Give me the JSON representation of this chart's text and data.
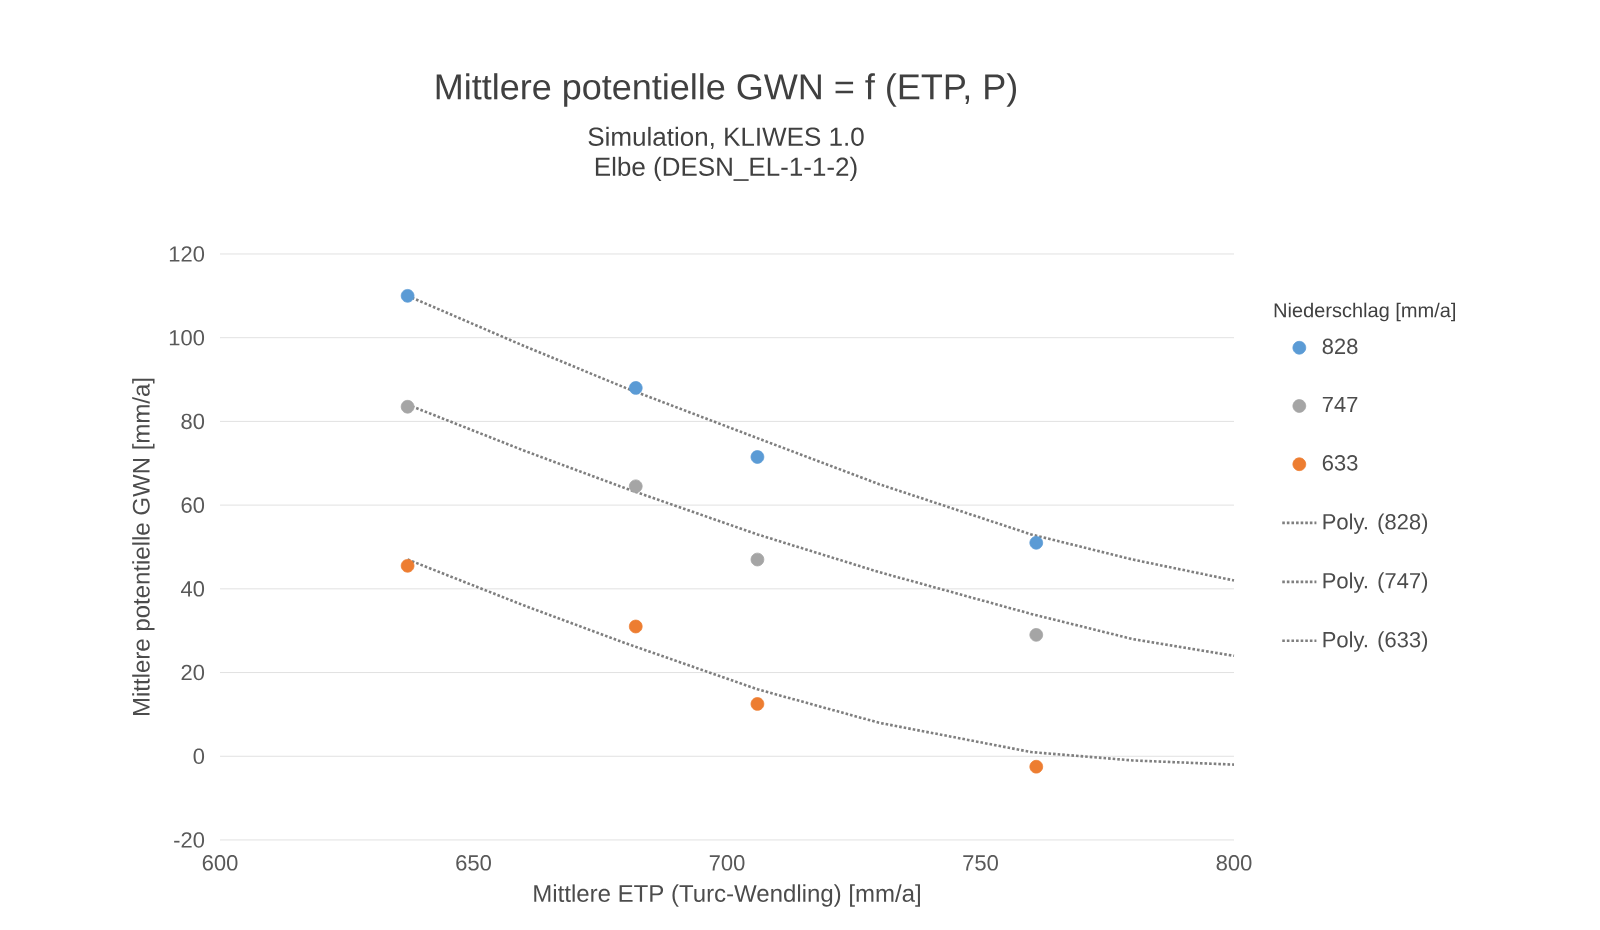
{
  "chart_data": {
    "type": "scatter",
    "title": "Mittlere potentielle GWN = f (ETP, P)",
    "subtitle": "Simulation, KLIWES 1.0\nElbe (DESN_EL-1-1-2)",
    "xlabel": "Mittlere ETP (Turc-Wendling) [mm/a]",
    "ylabel": "Mittlere potentielle GWN [mm/a]",
    "legend_title": "Niederschlag [mm/a]",
    "xlim": [
      600,
      800
    ],
    "xticks": [
      600,
      650,
      700,
      750,
      800
    ],
    "ylim": [
      -20,
      120
    ],
    "yticks": [
      -20,
      0,
      20,
      40,
      60,
      80,
      100,
      120
    ],
    "grid": "y",
    "legend": "right",
    "series": [
      {
        "name": "828",
        "marker": "circle",
        "color": "#5b9bd5",
        "x": [
          637,
          682,
          706,
          761
        ],
        "values": [
          110,
          88,
          71.5,
          51
        ]
      },
      {
        "name": "747",
        "marker": "circle",
        "color": "#a5a5a5",
        "x": [
          637,
          682,
          706,
          761
        ],
        "values": [
          83.5,
          64.5,
          47,
          29
        ]
      },
      {
        "name": "633",
        "marker": "circle",
        "color": "#ed7d31",
        "x": [
          637,
          682,
          706,
          761
        ],
        "values": [
          45.5,
          31,
          12.5,
          -2.5
        ]
      },
      {
        "name": "Poly. (828)",
        "type": "line",
        "line_style": "dotted",
        "marker": "none",
        "color": "#7f7f7f",
        "x": [
          637,
          660,
          680,
          706,
          730,
          760,
          780,
          800
        ],
        "values": [
          110,
          98,
          88,
          76,
          65,
          53,
          47,
          42
        ]
      },
      {
        "name": "Poly. (747)",
        "type": "line",
        "line_style": "dotted",
        "marker": "none",
        "color": "#7f7f7f",
        "x": [
          637,
          660,
          680,
          706,
          730,
          760,
          780,
          800
        ],
        "values": [
          84,
          73,
          64,
          53,
          44,
          34,
          28,
          24
        ]
      },
      {
        "name": "Poly. (633)",
        "type": "line",
        "line_style": "dotted",
        "marker": "none",
        "color": "#7f7f7f",
        "x": [
          637,
          660,
          680,
          706,
          730,
          760,
          780,
          800
        ],
        "values": [
          47,
          36,
          27,
          16,
          8,
          1,
          -1,
          -2
        ]
      }
    ]
  }
}
